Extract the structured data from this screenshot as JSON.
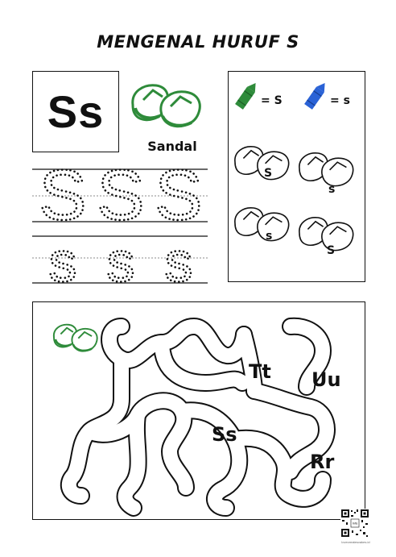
{
  "title": "MENGENAL HURUF S",
  "letter_pair": "Ss",
  "picture": {
    "label": "Sandal",
    "icon": "sandal-icon",
    "color": "#2e8b3a"
  },
  "trace_rows": [
    {
      "letter": "S",
      "count": 3
    },
    {
      "letter": "s",
      "count": 3
    }
  ],
  "color_key": [
    {
      "crayon_color": "#2e8b3a",
      "text": "= S"
    },
    {
      "crayon_color": "#2a62d6",
      "text": "= s"
    }
  ],
  "coloring_items": [
    {
      "letter": "S"
    },
    {
      "letter": "s"
    },
    {
      "letter": "s"
    },
    {
      "letter": "S"
    }
  ],
  "maze": {
    "start_icon": "sandal-icon",
    "targets": [
      "Tt",
      "Uu",
      "Ss",
      "Rr"
    ]
  },
  "footer": {
    "qr_label": "Info",
    "caption": "lovecreatesvakes.id"
  }
}
